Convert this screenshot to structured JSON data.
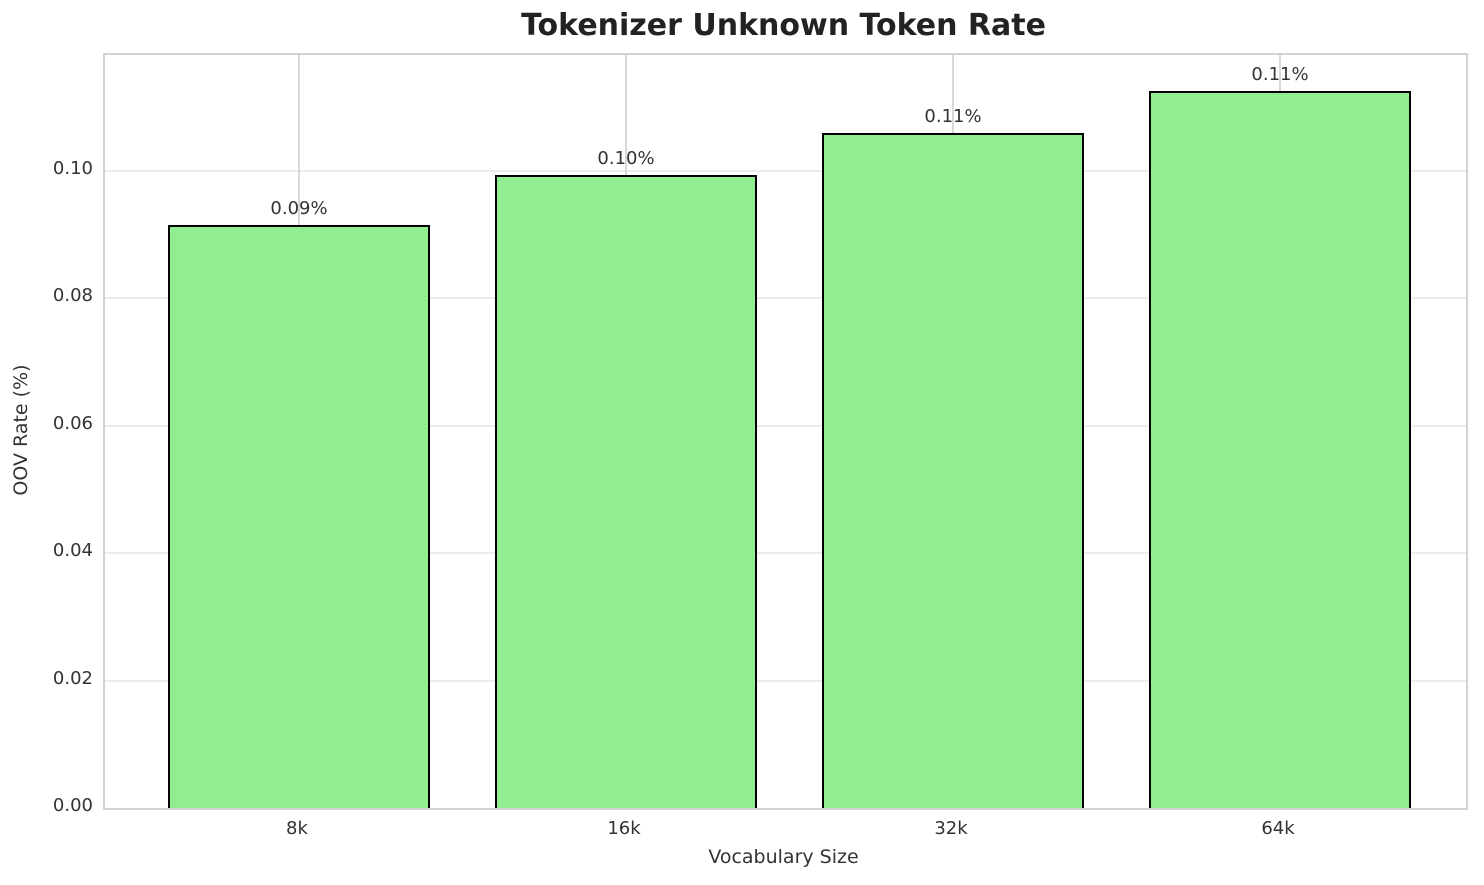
{
  "chart_data": {
    "type": "bar",
    "title": "Tokenizer Unknown Token Rate",
    "xlabel": "Vocabulary Size",
    "ylabel": "OOV Rate (%)",
    "categories": [
      "8k",
      "16k",
      "32k",
      "64k"
    ],
    "values": [
      0.0915,
      0.0994,
      0.106,
      0.1125
    ],
    "value_labels": [
      "0.09%",
      "0.10%",
      "0.11%",
      "0.11%"
    ],
    "ylim": [
      0,
      0.1182
    ],
    "ytick_values": [
      0.0,
      0.02,
      0.04,
      0.06,
      0.08,
      0.1
    ],
    "ytick_labels": [
      "0.00",
      "0.02",
      "0.04",
      "0.06",
      "0.08",
      "0.10"
    ],
    "grid": true,
    "legend": null,
    "bar_color": "#90EE90",
    "bar_edge_color": "#000000"
  }
}
